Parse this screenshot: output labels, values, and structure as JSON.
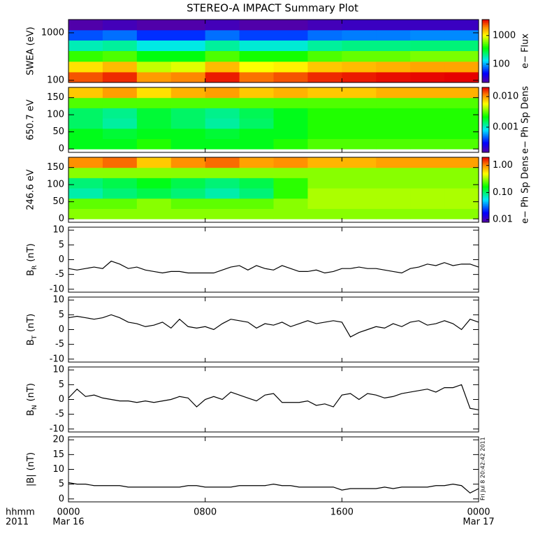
{
  "title": "STEREO-A IMPACT Summary Plot",
  "x_axis": {
    "xlim": [
      0,
      24
    ],
    "xticks": [
      {
        "value": 0,
        "label": "0000"
      },
      {
        "value": 8,
        "label": "0800"
      },
      {
        "value": 16,
        "label": "1600"
      },
      {
        "value": 24,
        "label": "0000"
      }
    ],
    "unit_label": "hhmm",
    "year": "2011",
    "dates": [
      "Mar 16",
      "Mar 17"
    ]
  },
  "timestamp": "Fri Jul  8 20:42:42 2011",
  "chart_data": [
    {
      "type": "heatmap",
      "ylabel": "SWEA (eV)",
      "log_y": true,
      "ylim": [
        90,
        1900
      ],
      "yticks": [
        100,
        1000
      ],
      "x_bins": [
        0,
        2,
        4,
        6,
        8,
        10,
        12,
        14,
        16,
        18,
        20,
        22,
        24
      ],
      "y_bins": [
        90,
        150,
        250,
        420,
        700,
        1150,
        1900
      ],
      "z": [
        [
          2500,
          3000,
          1800,
          2000,
          3200,
          2200,
          2500,
          3000,
          3200,
          3400,
          3500,
          3600
        ],
        [
          1200,
          1500,
          800,
          900,
          1500,
          1000,
          1100,
          1400,
          1500,
          1600,
          1700,
          1700
        ],
        [
          450,
          500,
          350,
          350,
          500,
          400,
          400,
          500,
          550,
          550,
          600,
          600
        ],
        [
          180,
          200,
          150,
          150,
          200,
          160,
          160,
          200,
          220,
          220,
          230,
          230
        ],
        [
          70,
          80,
          60,
          60,
          80,
          65,
          65,
          80,
          85,
          85,
          90,
          90
        ],
        [
          25,
          28,
          25,
          25,
          28,
          25,
          25,
          28,
          30,
          30,
          30,
          30
        ]
      ],
      "colorbar": {
        "label": "e− Flux",
        "lim": [
          23,
          3600
        ],
        "ticks": [
          100,
          1000
        ],
        "log": true
      }
    },
    {
      "type": "heatmap",
      "ylabel": "650.7 eV",
      "log_y": false,
      "ylim": [
        -10,
        180
      ],
      "yticks": [
        0,
        50,
        100,
        150
      ],
      "x_bins": [
        0,
        2,
        4,
        6,
        8,
        10,
        12,
        14,
        16,
        18,
        20,
        22,
        24
      ],
      "y_bins": [
        0,
        30,
        60,
        90,
        120,
        150,
        180
      ],
      "z": [
        [
          0.002,
          0.002,
          0.0025,
          0.002,
          0.002,
          0.002,
          0.0025,
          0.003,
          0.003,
          0.003,
          0.003,
          0.003
        ],
        [
          0.002,
          0.0018,
          0.002,
          0.002,
          0.0018,
          0.002,
          0.002,
          0.0025,
          0.0025,
          0.0025,
          0.0025,
          0.0025
        ],
        [
          0.0015,
          0.0012,
          0.0018,
          0.0015,
          0.0012,
          0.0015,
          0.002,
          0.0025,
          0.0025,
          0.0025,
          0.0025,
          0.0025
        ],
        [
          0.0015,
          0.0013,
          0.0018,
          0.0015,
          0.0013,
          0.0016,
          0.002,
          0.0025,
          0.0025,
          0.0025,
          0.0025,
          0.0025
        ],
        [
          0.003,
          0.003,
          0.003,
          0.003,
          0.003,
          0.003,
          0.003,
          0.003,
          0.003,
          0.003,
          0.003,
          0.003
        ],
        [
          0.008,
          0.01,
          0.007,
          0.009,
          0.01,
          0.008,
          0.009,
          0.008,
          0.008,
          0.009,
          0.009,
          0.009
        ]
      ],
      "colorbar": {
        "label": "e− Ph Sp Dens",
        "lim": [
          0.00015,
          0.02
        ],
        "ticks": [
          {
            "value": 0.01,
            "label": "0.010"
          },
          0.001
        ],
        "log": true
      }
    },
    {
      "type": "heatmap",
      "ylabel": "246.6 eV",
      "log_y": false,
      "ylim": [
        -10,
        180
      ],
      "yticks": [
        0,
        50,
        100,
        150
      ],
      "x_bins": [
        0,
        2,
        4,
        6,
        8,
        10,
        12,
        14,
        16,
        18,
        20,
        22,
        24
      ],
      "y_bins": [
        0,
        30,
        60,
        90,
        120,
        150,
        180
      ],
      "z": [
        [
          0.3,
          0.3,
          0.3,
          0.3,
          0.3,
          0.3,
          0.3,
          0.3,
          0.3,
          0.3,
          0.3,
          0.3
        ],
        [
          0.25,
          0.25,
          0.3,
          0.25,
          0.25,
          0.25,
          0.3,
          0.35,
          0.35,
          0.35,
          0.35,
          0.35
        ],
        [
          0.08,
          0.1,
          0.12,
          0.1,
          0.08,
          0.1,
          0.2,
          0.35,
          0.35,
          0.35,
          0.35,
          0.35
        ],
        [
          0.1,
          0.12,
          0.15,
          0.12,
          0.1,
          0.12,
          0.2,
          0.3,
          0.3,
          0.3,
          0.3,
          0.3
        ],
        [
          0.3,
          0.3,
          0.3,
          0.3,
          0.3,
          0.3,
          0.3,
          0.3,
          0.3,
          0.3,
          0.3,
          0.3
        ],
        [
          1.0,
          1.2,
          0.7,
          1.0,
          1.2,
          0.9,
          1.0,
          0.8,
          0.8,
          0.9,
          0.9,
          0.9
        ]
      ],
      "colorbar": {
        "label": "e− Ph Sp Dens",
        "lim": [
          0.008,
          2.0
        ],
        "ticks": [
          {
            "value": 1,
            "label": "1.00"
          },
          {
            "value": 0.1,
            "label": "0.10"
          },
          0.01
        ],
        "log": true
      }
    },
    {
      "type": "line",
      "ylabel": "B",
      "ylabel_sub": "R",
      "ylabel_unit": "(nT)",
      "color": "#000000",
      "ylim": [
        -11,
        11
      ],
      "yticks": [
        -10,
        -5,
        0,
        5,
        10
      ],
      "x": [
        0,
        0.5,
        1,
        1.5,
        2,
        2.5,
        3,
        3.5,
        4,
        4.5,
        5,
        5.5,
        6,
        6.5,
        7,
        7.5,
        8,
        8.5,
        9,
        9.5,
        10,
        10.5,
        11,
        11.5,
        12,
        12.5,
        13,
        13.5,
        14,
        14.5,
        15,
        15.5,
        16,
        16.5,
        17,
        17.5,
        18,
        18.5,
        19,
        19.5,
        20,
        20.5,
        21,
        21.5,
        22,
        22.5,
        23,
        23.5,
        24
      ],
      "values": [
        -3,
        -3.5,
        -3,
        -2.5,
        -3,
        -0.5,
        -1.5,
        -3,
        -2.5,
        -3.5,
        -4,
        -4.5,
        -4,
        -4,
        -4.5,
        -4.5,
        -4.5,
        -4.5,
        -3.5,
        -2.5,
        -2,
        -3.5,
        -2,
        -3,
        -3.5,
        -2,
        -3,
        -4,
        -4,
        -3.5,
        -4.5,
        -4,
        -3,
        -3,
        -2.5,
        -3,
        -3,
        -3.5,
        -4,
        -4.5,
        -3,
        -2.5,
        -1.5,
        -2,
        -1,
        -2,
        -1.5,
        -1.5,
        -2.5
      ]
    },
    {
      "type": "line",
      "ylabel": "B",
      "ylabel_sub": "T",
      "ylabel_unit": "(nT)",
      "color": "#000000",
      "ylim": [
        -11,
        11
      ],
      "yticks": [
        -10,
        -5,
        0,
        5,
        10
      ],
      "x": [
        0,
        0.5,
        1,
        1.5,
        2,
        2.5,
        3,
        3.5,
        4,
        4.5,
        5,
        5.5,
        6,
        6.5,
        7,
        7.5,
        8,
        8.5,
        9,
        9.5,
        10,
        10.5,
        11,
        11.5,
        12,
        12.5,
        13,
        13.5,
        14,
        14.5,
        15,
        15.5,
        16,
        16.5,
        17,
        17.5,
        18,
        18.5,
        19,
        19.5,
        20,
        20.5,
        21,
        21.5,
        22,
        22.5,
        23,
        23.5,
        24
      ],
      "values": [
        4,
        4.5,
        4,
        3.5,
        4,
        5,
        4,
        2.5,
        2,
        1,
        1.5,
        2.5,
        0.5,
        3.5,
        1,
        0.5,
        1,
        0,
        2,
        3.5,
        3,
        2.5,
        0.5,
        2,
        1.5,
        2.5,
        1,
        2,
        3,
        2,
        2.5,
        3,
        2.5,
        -2.5,
        -1,
        0,
        1,
        0.5,
        2,
        1,
        2.5,
        3,
        1.5,
        2,
        3,
        2,
        0,
        3.5,
        2.5
      ]
    },
    {
      "type": "line",
      "ylabel": "B",
      "ylabel_sub": "N",
      "ylabel_unit": "(nT)",
      "color": "#000000",
      "ylim": [
        -11,
        11
      ],
      "yticks": [
        -10,
        -5,
        0,
        5,
        10
      ],
      "x": [
        0,
        0.5,
        1,
        1.5,
        2,
        2.5,
        3,
        3.5,
        4,
        4.5,
        5,
        5.5,
        6,
        6.5,
        7,
        7.5,
        8,
        8.5,
        9,
        9.5,
        10,
        10.5,
        11,
        11.5,
        12,
        12.5,
        13,
        13.5,
        14,
        14.5,
        15,
        15.5,
        16,
        16.5,
        17,
        17.5,
        18,
        18.5,
        19,
        19.5,
        20,
        20.5,
        21,
        21.5,
        22,
        22.5,
        23,
        23.5,
        24
      ],
      "values": [
        0.5,
        3.5,
        1,
        1.5,
        0.5,
        0,
        -0.5,
        -0.5,
        -1,
        -0.5,
        -1,
        -0.5,
        0,
        1,
        0.5,
        -2.5,
        0,
        1,
        0,
        2.5,
        1.5,
        0.5,
        -0.5,
        1.5,
        2,
        -1,
        -1,
        -1,
        -0.5,
        -2,
        -1.5,
        -2.5,
        1.5,
        2,
        0,
        2,
        1.5,
        0.5,
        1,
        2,
        2.5,
        3,
        3.5,
        2.5,
        4,
        4,
        5,
        -3,
        -3.5
      ]
    },
    {
      "type": "line",
      "ylabel": "|B|",
      "ylabel_unit": "(nT)",
      "color": "#000000",
      "ylim": [
        -1,
        21
      ],
      "yticks": [
        0,
        5,
        10,
        15,
        20
      ],
      "x": [
        0,
        0.5,
        1,
        1.5,
        2,
        2.5,
        3,
        3.5,
        4,
        4.5,
        5,
        5.5,
        6,
        6.5,
        7,
        7.5,
        8,
        8.5,
        9,
        9.5,
        10,
        10.5,
        11,
        11.5,
        12,
        12.5,
        13,
        13.5,
        14,
        14.5,
        15,
        15.5,
        16,
        16.5,
        17,
        17.5,
        18,
        18.5,
        19,
        19.5,
        20,
        20.5,
        21,
        21.5,
        22,
        22.5,
        23,
        23.5,
        24
      ],
      "values": [
        5.5,
        5,
        5,
        4.5,
        4.5,
        4.5,
        4.5,
        4,
        4,
        4,
        4,
        4,
        4,
        4,
        4.5,
        4.5,
        4,
        4,
        4,
        4,
        4.5,
        4.5,
        4.5,
        4.5,
        5,
        4.5,
        4.5,
        4,
        4,
        4,
        4,
        4,
        3,
        3.5,
        3.5,
        3.5,
        3.5,
        4,
        3.5,
        4,
        4,
        4,
        4,
        4.5,
        4.5,
        5,
        4.5,
        2,
        3.5
      ]
    }
  ]
}
